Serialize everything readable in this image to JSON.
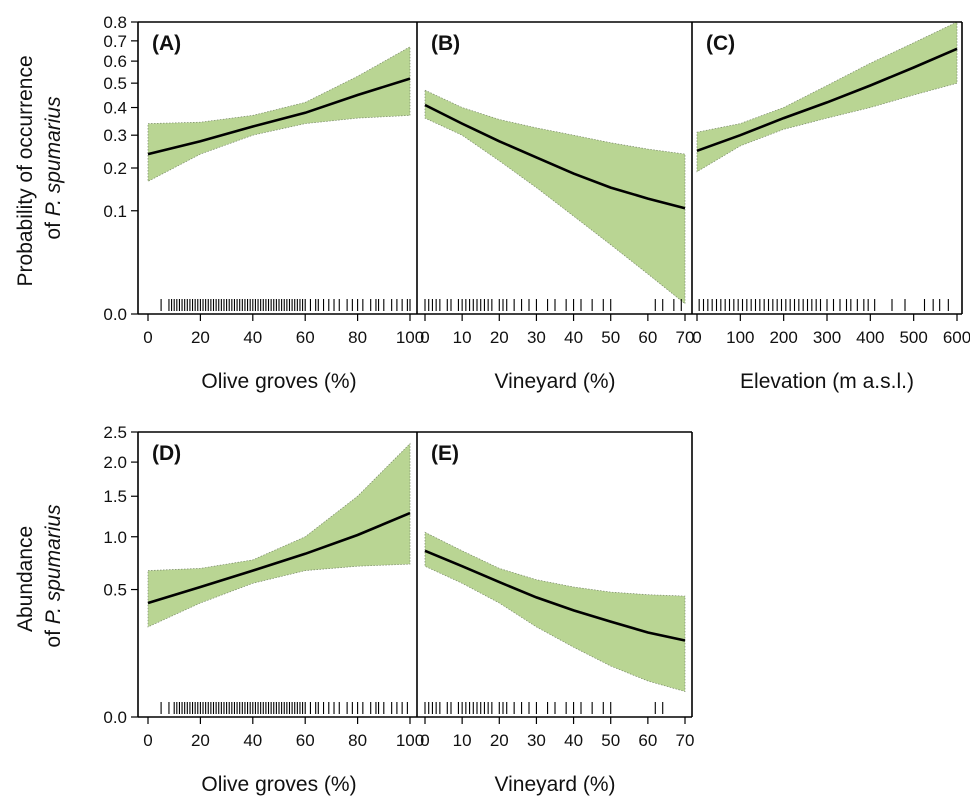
{
  "colors": {
    "ribbon_fill": "#b9d593",
    "line": "#000000"
  },
  "rows": [
    {
      "ylabel_line1": "Probability of occurrence",
      "ylabel_line2_prefix": "of ",
      "ylabel_line2_italic": "P. spumarius",
      "y_ticks": [
        "0.0",
        "0.1",
        "0.2",
        "0.3",
        "0.4",
        "0.5",
        "0.6",
        "0.7",
        "0.8"
      ]
    },
    {
      "ylabel_line1": "Abundance",
      "ylabel_line2_prefix": "of ",
      "ylabel_line2_italic": "P. spumarius",
      "y_ticks": [
        "0.0",
        "0.5",
        "1.0",
        "1.5",
        "2.0",
        "2.5"
      ]
    }
  ],
  "chart_data": [
    {
      "panel": "(A)",
      "type": "line",
      "xlabel": "Olive groves (%)",
      "xlim": [
        0,
        100
      ],
      "x_ticks": [
        "0",
        "20",
        "40",
        "60",
        "80",
        "100"
      ],
      "y_scale": "sqrt",
      "ylim": [
        0,
        0.8
      ],
      "x": [
        0,
        20,
        40,
        60,
        80,
        100
      ],
      "fit": [
        0.24,
        0.28,
        0.33,
        0.38,
        0.45,
        0.52
      ],
      "lower": [
        0.165,
        0.24,
        0.3,
        0.34,
        0.36,
        0.37
      ],
      "upper": [
        0.34,
        0.345,
        0.37,
        0.42,
        0.53,
        0.67
      ],
      "rug": [
        5,
        8,
        9,
        10,
        11,
        12,
        13,
        14,
        15,
        16,
        17,
        18,
        19,
        20,
        21,
        22,
        23,
        24,
        25,
        26,
        27,
        28,
        29,
        30,
        31,
        32,
        33,
        34,
        35,
        36,
        37,
        38,
        39,
        40,
        41,
        42,
        43,
        44,
        45,
        46,
        47,
        48,
        49,
        50,
        51,
        52,
        53,
        54,
        55,
        56,
        57,
        58,
        59,
        60,
        62,
        64,
        65,
        67,
        69,
        71,
        73,
        76,
        78,
        80,
        82,
        85,
        87,
        88,
        90,
        93,
        95,
        97,
        99,
        100
      ]
    },
    {
      "panel": "(B)",
      "type": "line",
      "xlabel": "Vineyard (%)",
      "xlim": [
        0,
        70
      ],
      "x_ticks": [
        "0",
        "10",
        "20",
        "30",
        "40",
        "50",
        "60",
        "70"
      ],
      "y_scale": "sqrt",
      "ylim": [
        0,
        0.8
      ],
      "x": [
        0,
        10,
        20,
        30,
        40,
        50,
        60,
        70
      ],
      "fit": [
        0.41,
        0.34,
        0.28,
        0.23,
        0.185,
        0.15,
        0.125,
        0.105
      ],
      "lower": [
        0.36,
        0.3,
        0.22,
        0.15,
        0.09,
        0.045,
        0.015,
        0.001
      ],
      "upper": [
        0.47,
        0.4,
        0.355,
        0.325,
        0.3,
        0.275,
        0.255,
        0.24
      ],
      "rug": [
        0,
        1,
        2,
        3,
        4,
        6,
        7,
        9,
        10,
        11,
        12,
        13,
        14,
        15,
        16,
        17,
        18,
        20,
        21,
        22,
        24,
        26,
        28,
        30,
        33,
        35,
        38,
        40,
        42,
        45,
        48,
        50,
        62,
        64,
        67,
        69
      ]
    },
    {
      "panel": "(C)",
      "type": "line",
      "xlabel": "Elevation (m a.s.l.)",
      "xlim": [
        0,
        600
      ],
      "x_ticks": [
        "0",
        "100",
        "200",
        "300",
        "400",
        "500",
        "600"
      ],
      "y_scale": "sqrt",
      "ylim": [
        0,
        0.8
      ],
      "x": [
        0,
        100,
        200,
        300,
        400,
        500,
        600
      ],
      "fit": [
        0.25,
        0.3,
        0.36,
        0.42,
        0.49,
        0.57,
        0.66
      ],
      "lower": [
        0.19,
        0.265,
        0.32,
        0.36,
        0.4,
        0.45,
        0.5
      ],
      "upper": [
        0.31,
        0.34,
        0.4,
        0.49,
        0.59,
        0.69,
        0.8
      ],
      "rug": [
        5,
        15,
        25,
        35,
        45,
        55,
        65,
        75,
        85,
        95,
        105,
        115,
        125,
        135,
        145,
        155,
        165,
        175,
        185,
        195,
        205,
        215,
        225,
        235,
        245,
        255,
        265,
        275,
        285,
        300,
        315,
        330,
        345,
        355,
        370,
        385,
        395,
        410,
        450,
        480,
        525,
        545,
        560,
        580
      ]
    },
    {
      "panel": "(D)",
      "type": "line",
      "xlabel": "Olive groves (%)",
      "xlim": [
        0,
        100
      ],
      "x_ticks": [
        "0",
        "20",
        "40",
        "60",
        "80",
        "100"
      ],
      "y_scale": "sqrt",
      "ylim": [
        0,
        2.5
      ],
      "x": [
        0,
        20,
        40,
        60,
        80,
        100
      ],
      "fit": [
        0.4,
        0.52,
        0.66,
        0.82,
        1.02,
        1.28
      ],
      "lower": [
        0.25,
        0.4,
        0.55,
        0.66,
        0.7,
        0.72
      ],
      "upper": [
        0.66,
        0.68,
        0.76,
        1.0,
        1.5,
        2.3
      ],
      "rug": [
        5,
        8,
        10,
        11,
        12,
        13,
        14,
        15,
        16,
        17,
        18,
        19,
        20,
        21,
        22,
        23,
        24,
        25,
        26,
        27,
        28,
        29,
        30,
        31,
        32,
        33,
        34,
        35,
        36,
        37,
        38,
        39,
        40,
        41,
        42,
        43,
        44,
        45,
        46,
        47,
        48,
        49,
        50,
        51,
        52,
        53,
        54,
        55,
        56,
        57,
        58,
        59,
        60,
        62,
        64,
        65,
        67,
        69,
        71,
        73,
        76,
        78,
        80,
        82,
        85,
        87,
        88,
        90,
        93,
        95,
        97,
        99
      ]
    },
    {
      "panel": "(E)",
      "type": "line",
      "xlabel": "Vineyard (%)",
      "xlim": [
        0,
        70
      ],
      "x_ticks": [
        "0",
        "10",
        "20",
        "30",
        "40",
        "50",
        "60",
        "70"
      ],
      "y_scale": "sqrt",
      "ylim": [
        0,
        2.5
      ],
      "x": [
        0,
        10,
        20,
        30,
        40,
        50,
        60,
        70
      ],
      "fit": [
        0.85,
        0.7,
        0.56,
        0.44,
        0.35,
        0.28,
        0.22,
        0.18
      ],
      "lower": [
        0.7,
        0.55,
        0.4,
        0.25,
        0.15,
        0.08,
        0.04,
        0.02
      ],
      "upper": [
        1.05,
        0.85,
        0.68,
        0.58,
        0.52,
        0.48,
        0.46,
        0.45
      ],
      "rug": [
        0,
        1,
        2,
        3,
        4,
        6,
        7,
        9,
        10,
        11,
        12,
        13,
        14,
        15,
        16,
        17,
        18,
        20,
        21,
        22,
        24,
        26,
        28,
        30,
        33,
        35,
        38,
        40,
        42,
        45,
        48,
        50,
        62,
        64
      ]
    }
  ]
}
